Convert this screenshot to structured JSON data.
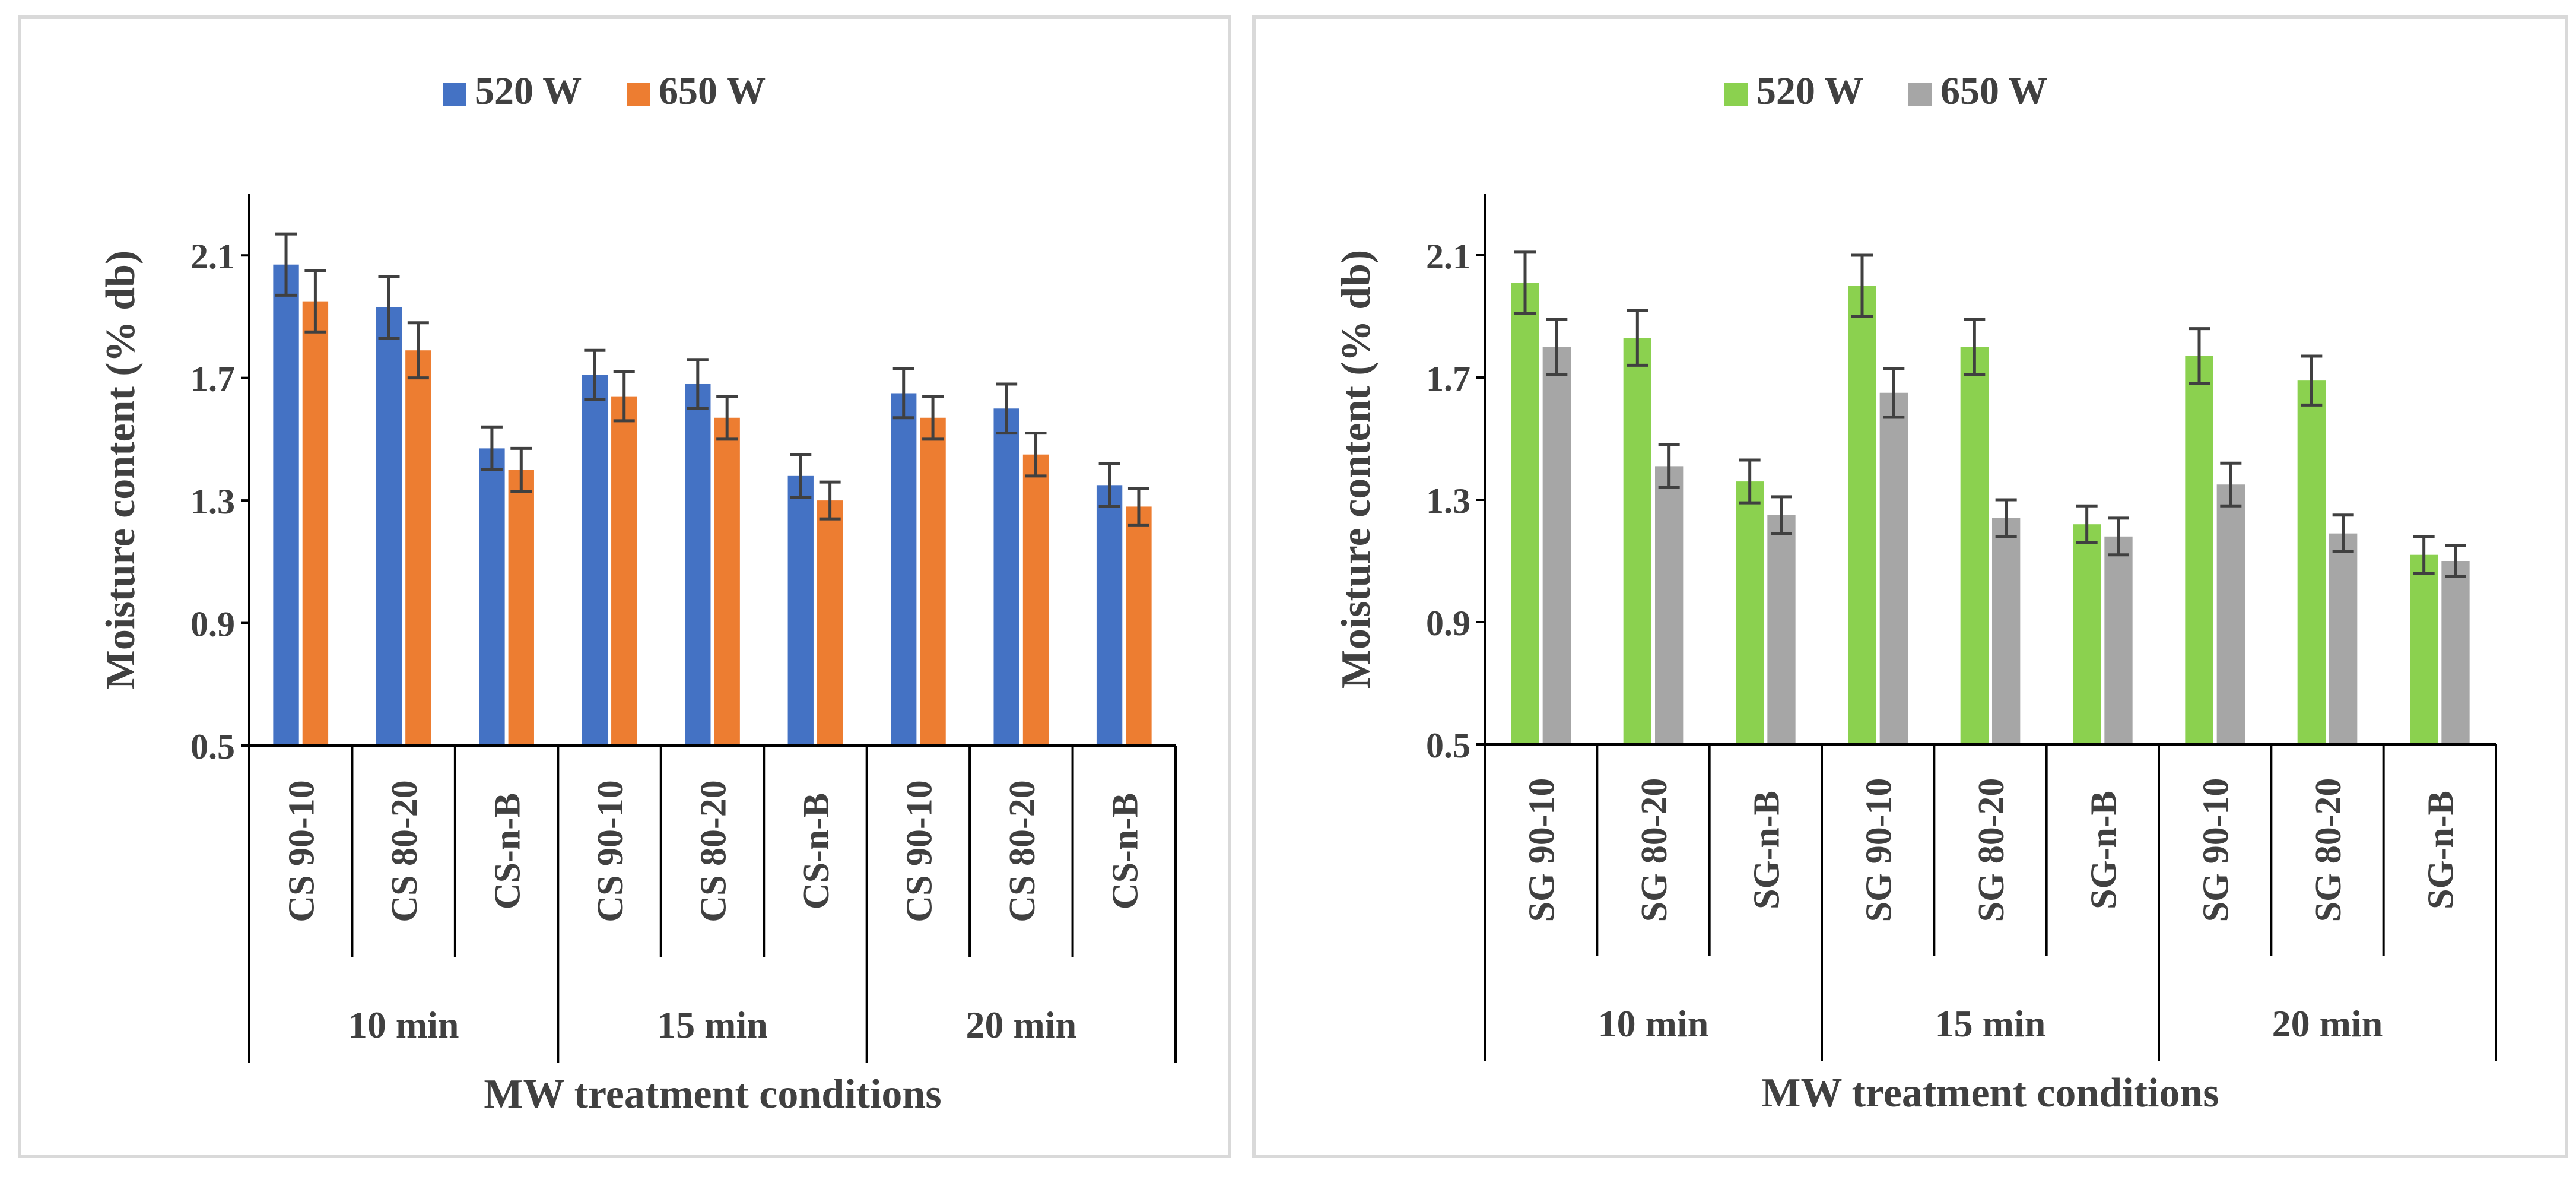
{
  "chart_data": [
    {
      "type": "bar",
      "title": "",
      "xlabel": "MW treatment conditions",
      "ylabel": "Moisture content (% db)",
      "ylim": [
        0.5,
        2.3
      ],
      "yticks": [
        "0.5",
        "0.9",
        "1.3",
        "1.7",
        "2.1"
      ],
      "ytick_values": [
        0.5,
        0.9,
        1.3,
        1.7,
        2.1
      ],
      "grid": false,
      "legend_position": "top-center",
      "categories": [
        "CS 90-10",
        "CS 80-20",
        "CS-n-B",
        "CS 90-10",
        "CS 80-20",
        "CS-n-B",
        "CS 90-10",
        "CS 80-20",
        "CS-n-B"
      ],
      "groups": [
        "10 min",
        "15 min",
        "20 min"
      ],
      "series": [
        {
          "name": "520 W",
          "color": "#4472c4",
          "values": [
            2.07,
            1.93,
            1.47,
            1.71,
            1.68,
            1.38,
            1.65,
            1.6,
            1.35
          ],
          "errors": [
            0.1,
            0.1,
            0.07,
            0.08,
            0.08,
            0.07,
            0.08,
            0.08,
            0.07
          ]
        },
        {
          "name": "650 W",
          "color": "#ed7d31",
          "values": [
            1.95,
            1.79,
            1.4,
            1.64,
            1.57,
            1.3,
            1.57,
            1.45,
            1.28
          ],
          "errors": [
            0.1,
            0.09,
            0.07,
            0.08,
            0.07,
            0.06,
            0.07,
            0.07,
            0.06
          ]
        }
      ]
    },
    {
      "type": "bar",
      "title": "",
      "xlabel": "MW treatment conditions",
      "ylabel": "Moisture content (% db)",
      "ylim": [
        0.5,
        2.3
      ],
      "yticks": [
        "0.5",
        "0.9",
        "1.3",
        "1.7",
        "2.1"
      ],
      "ytick_values": [
        0.5,
        0.9,
        1.3,
        1.7,
        2.1
      ],
      "grid": false,
      "legend_position": "top-center",
      "categories": [
        "SG 90-10",
        "SG 80-20",
        "SG-n-B",
        "SG 90-10",
        "SG 80-20",
        "SG-n-B",
        "SG 90-10",
        "SG 80-20",
        "SG-n-B"
      ],
      "groups": [
        "10 min",
        "15 min",
        "20 min"
      ],
      "series": [
        {
          "name": "520 W",
          "color": "#8bd14f",
          "values": [
            2.01,
            1.83,
            1.36,
            2.0,
            1.8,
            1.22,
            1.77,
            1.69,
            1.12
          ],
          "errors": [
            0.1,
            0.09,
            0.07,
            0.1,
            0.09,
            0.06,
            0.09,
            0.08,
            0.06
          ]
        },
        {
          "name": "650 W",
          "color": "#a6a6a6",
          "values": [
            1.8,
            1.41,
            1.25,
            1.65,
            1.24,
            1.18,
            1.35,
            1.19,
            1.1
          ],
          "errors": [
            0.09,
            0.07,
            0.06,
            0.08,
            0.06,
            0.06,
            0.07,
            0.06,
            0.05
          ]
        }
      ]
    }
  ]
}
